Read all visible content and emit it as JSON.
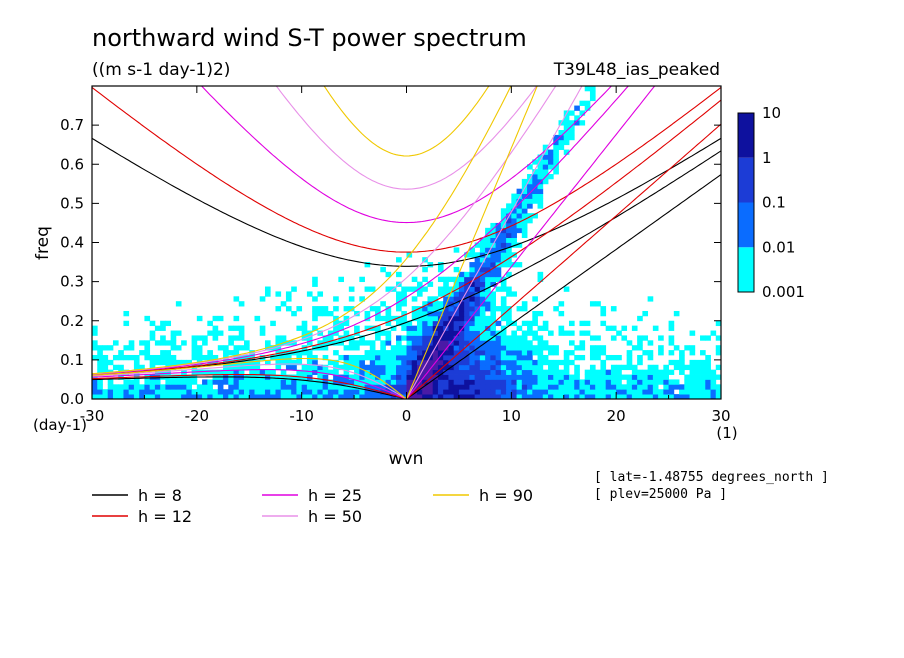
{
  "chart_data": {
    "type": "heatmap",
    "title": "northward wind S-T power spectrum",
    "subtitle": "((m s-1 day-1)2)",
    "run_label": "T39L48_ias_peaked",
    "xlabel": "wvn",
    "ylabel": "freq",
    "x_unit": "(1)",
    "y_unit": "(day-1)",
    "xlim": [
      -30,
      30
    ],
    "ylim": [
      0,
      0.8
    ],
    "x_ticks": [
      -30,
      -20,
      -10,
      0,
      10,
      20,
      30
    ],
    "x_tick_labels": [
      "-30",
      "-20",
      "-10",
      "0",
      "10",
      "20",
      "30"
    ],
    "y_ticks": [
      0,
      0.1,
      0.2,
      0.3,
      0.4,
      0.5,
      0.6,
      0.7
    ],
    "y_tick_labels": [
      "0.0",
      "0.1",
      "0.2",
      "0.3",
      "0.4",
      "0.5",
      "0.6",
      "0.7"
    ],
    "colorbar": {
      "levels": [
        0.001,
        0.01,
        0.1,
        1,
        10
      ],
      "labels": [
        "0.001",
        "0.01",
        "0.1",
        "1",
        "10"
      ],
      "colors": [
        "#00ffff",
        "#0a6cff",
        "#1c3cd6",
        "#0e119e",
        "#4a1aa6"
      ],
      "scale": "log"
    },
    "legend": {
      "placement": "bottom",
      "entries": [
        {
          "label": "h =  8",
          "depth_m": 8,
          "color": "#000000"
        },
        {
          "label": "h = 12",
          "depth_m": 12,
          "color": "#e00000"
        },
        {
          "label": "h = 25",
          "depth_m": 25,
          "color": "#e000e0"
        },
        {
          "label": "h = 50",
          "depth_m": 50,
          "color": "#e890e8"
        },
        {
          "label": "h = 90",
          "depth_m": 90,
          "color": "#f0c800"
        }
      ]
    },
    "annotations": [
      "[ lat=-1.48755 degrees_north ]",
      "[ plev=25000 Pa ]"
    ],
    "dispersion_curves": "theoretical equatorial wave dispersion curves (Rossby-gravity, inertio-gravity, Kelvin) for each equivalent depth h",
    "grid": false
  }
}
